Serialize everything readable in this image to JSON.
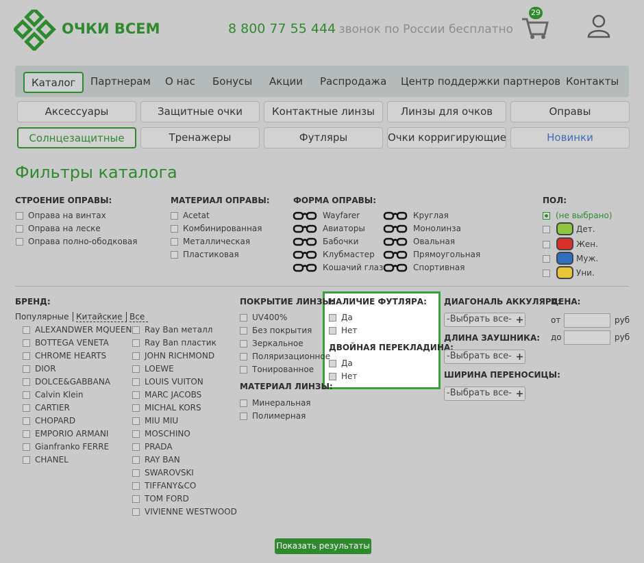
{
  "header": {
    "logo": "ОЧКИ ВСЕМ",
    "phone": "8 800 77 55 444",
    "phone_note": "- звонок по России бесплатно",
    "cart_count": 29
  },
  "nav": [
    "Каталог",
    "Партнерам",
    "О нас",
    "Бонусы",
    "Акции",
    "Распродажа",
    "Центр поддержки партнеров",
    "Контакты"
  ],
  "categories": [
    "Аксессуары",
    "Защитные очки",
    "Контактные линзы",
    "Линзы для очков",
    "Оправы",
    "Солнцезащитные",
    "Тренажеры",
    "Футляры",
    "Очки корригирующие",
    "Новинки"
  ],
  "title": "Фильтры каталога",
  "filters": {
    "frame_structure": {
      "title": "СТРОЕНИЕ ОПРАВЫ:",
      "options": [
        "Оправа на винтах",
        "Оправа на леске",
        "Оправа полно-ободковая"
      ]
    },
    "frame_material": {
      "title": "МАТЕРИАЛ ОПРАВЫ:",
      "options": [
        "Acetat",
        "Комбинированная",
        "Металлическая",
        "Пластиковая"
      ]
    },
    "frame_shape": {
      "title": "ФОРМА ОПРАВЫ:",
      "options": [
        "Wayfarer",
        "Авиаторы",
        "Бабочки",
        "Клубмастер",
        "Кошачий глаз",
        "Круглая",
        "Монолинза",
        "Овальная",
        "Прямоугольная",
        "Спортивная"
      ]
    },
    "gender": {
      "title": "ПОЛ:",
      "options": [
        "(не выбрано)",
        "Дет.",
        "Жен.",
        "Муж.",
        "Уни."
      ]
    },
    "brand": {
      "title": "БРЕНД:",
      "tabs": [
        "Популярные",
        "Китайские",
        "Все"
      ],
      "options": [
        "ALEXANDWER MQUEEN",
        "BOTTEGA VENETA",
        "CHROME HEARTS",
        "DIOR",
        "DOLCE&GABBANA",
        "Calvin Klein",
        "CARTIER",
        "CHOPARD",
        "EMPORIO ARMANI",
        "Gianfranko FERRE",
        "CHANEL",
        "Ray Ban металл",
        "Ray Ban пластик",
        "JOHN RICHMOND",
        "LOEWE",
        "LOUIS VUITON",
        "MARC JACOBS",
        "MICHAL KORS",
        "MIU MIU",
        "MOSCHINO",
        "PRADA",
        "RAY BAN",
        "SWAROVSKI",
        "TIFFANY&CO",
        "TOM FORD",
        "VIVIENNE WESTWOOD"
      ]
    },
    "lens_coating": {
      "title": "ПОКРЫТИЕ ЛИНЗЫ:",
      "options": [
        "UV400%",
        "Без покрытия",
        "Зеркальное",
        "Поляризационное",
        "Тонированное"
      ]
    },
    "lens_material": {
      "title": "МАТЕРИАЛ ЛИНЗЫ:",
      "options": [
        "Минеральная",
        "Полимерная"
      ]
    },
    "case": {
      "title": "НАЛИЧИЕ ФУТЛЯРА:",
      "options": [
        "Да",
        "Нет"
      ]
    },
    "double_bridge": {
      "title": "ДВОЙНАЯ ПЕРЕКЛАДИНА:",
      "options": [
        "Да",
        "Нет"
      ]
    },
    "diagonal": {
      "title": "ДИАГОНАЛЬ АККУЛЯРА:",
      "select": "-Выбрать все-"
    },
    "temple_length": {
      "title": "ДЛИНА ЗАУШНИКА:",
      "select": "-Выбрать все-"
    },
    "bridge_width": {
      "title": "ШИРИНА ПЕРЕНОСИЦЫ:",
      "select": "-Выбрать все-"
    },
    "price": {
      "title": "ЦЕНА:",
      "from": "от",
      "to": "до",
      "unit": "руб"
    }
  },
  "submit": "Показать результаты"
}
